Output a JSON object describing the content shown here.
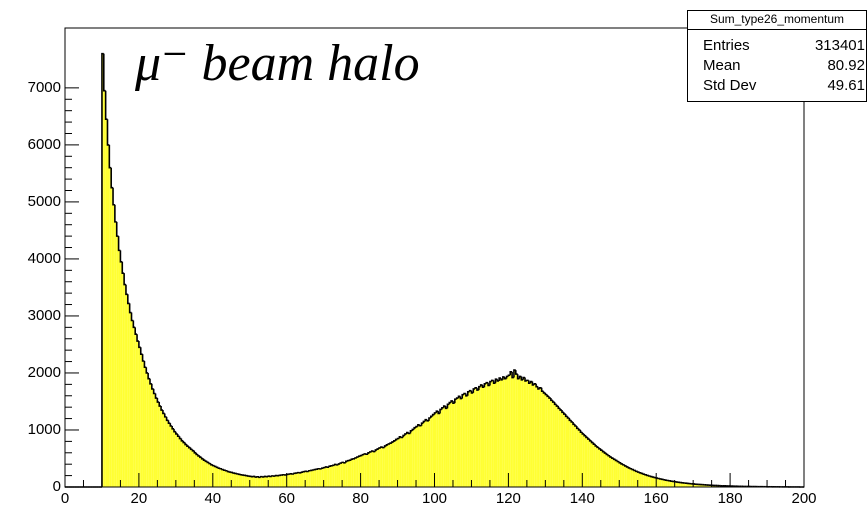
{
  "chart_data": {
    "type": "histogram",
    "title": "Sum_type26_momentum",
    "annotation": "μ⁻ beam halo",
    "stats": {
      "rows": [
        {
          "label": "Entries",
          "value": 313401
        },
        {
          "label": "Mean",
          "value": 80.92
        },
        {
          "label": "Std Dev",
          "value": 49.61
        }
      ]
    },
    "color": "#ffff33",
    "line_color": "#000000",
    "xlim": [
      0,
      200
    ],
    "ylim": [
      0,
      8050
    ],
    "xticks": [
      0,
      20,
      40,
      60,
      80,
      100,
      120,
      140,
      160,
      180,
      200
    ],
    "yticks": [
      0,
      1000,
      2000,
      3000,
      4000,
      5000,
      6000,
      7000
    ],
    "bins": [
      0,
      0.5,
      1,
      1.5,
      2,
      2.5,
      3,
      3.5,
      4,
      4.5,
      5,
      5.5,
      6,
      6.5,
      7,
      7.5,
      8,
      8.5,
      9,
      9.5,
      10,
      10.5,
      11,
      11.5,
      12,
      12.5,
      13,
      13.5,
      14,
      14.5,
      15,
      15.5,
      16,
      16.5,
      17,
      17.5,
      18,
      18.5,
      19,
      19.5,
      20,
      20.5,
      21,
      21.5,
      22,
      22.5,
      23,
      23.5,
      24,
      24.5,
      25,
      25.5,
      26,
      26.5,
      27,
      27.5,
      28,
      28.5,
      29,
      29.5,
      30,
      30.5,
      31,
      31.5,
      32,
      32.5,
      33,
      33.5,
      34,
      34.5,
      35,
      35.5,
      36,
      36.5,
      37,
      37.5,
      38,
      38.5,
      39,
      39.5,
      40,
      40.5,
      41,
      41.5,
      42,
      42.5,
      43,
      43.5,
      44,
      44.5,
      45,
      45.5,
      46,
      46.5,
      47,
      47.5,
      48,
      48.5,
      49,
      49.5,
      50,
      50.5,
      51,
      51.5,
      52,
      52.5,
      53,
      53.5,
      54,
      54.5,
      55,
      55.5,
      56,
      56.5,
      57,
      57.5,
      58,
      58.5,
      59,
      59.5,
      60,
      60.5,
      61,
      61.5,
      62,
      62.5,
      63,
      63.5,
      64,
      64.5,
      65,
      65.5,
      66,
      66.5,
      67,
      67.5,
      68,
      68.5,
      69,
      69.5,
      70,
      70.5,
      71,
      71.5,
      72,
      72.5,
      73,
      73.5,
      74,
      74.5,
      75,
      75.5,
      76,
      76.5,
      77,
      77.5,
      78,
      78.5,
      79,
      79.5,
      80,
      80.5,
      81,
      81.5,
      82,
      82.5,
      83,
      83.5,
      84,
      84.5,
      85,
      85.5,
      86,
      86.5,
      87,
      87.5,
      88,
      88.5,
      89,
      89.5,
      90,
      90.5,
      91,
      91.5,
      92,
      92.5,
      93,
      93.5,
      94,
      94.5,
      95,
      95.5,
      96,
      96.5,
      97,
      97.5,
      98,
      98.5,
      99,
      99.5,
      100,
      100.5,
      101,
      101.5,
      102,
      102.5,
      103,
      103.5,
      104,
      104.5,
      105,
      105.5,
      106,
      106.5,
      107,
      107.5,
      108,
      108.5,
      109,
      109.5,
      110,
      110.5,
      111,
      111.5,
      112,
      112.5,
      113,
      113.5,
      114,
      114.5,
      115,
      115.5,
      116,
      116.5,
      117,
      117.5,
      118,
      118.5,
      119,
      119.5,
      120,
      120.5,
      121,
      121.5,
      122,
      122.5,
      123,
      123.5,
      124,
      124.5,
      125,
      125.5,
      126,
      126.5,
      127,
      127.5,
      128,
      128.5,
      129,
      129.5,
      130,
      130.5,
      131,
      131.5,
      132,
      132.5,
      133,
      133.5,
      134,
      134.5,
      135,
      135.5,
      136,
      136.5,
      137,
      137.5,
      138,
      138.5,
      139,
      139.5,
      140,
      140.5,
      141,
      141.5,
      142,
      142.5,
      143,
      143.5,
      144,
      144.5,
      145,
      145.5,
      146,
      146.5,
      147,
      147.5,
      148,
      148.5,
      149,
      149.5,
      150,
      150.5,
      151,
      151.5,
      152,
      152.5,
      153,
      153.5,
      154,
      154.5,
      155,
      155.5,
      156,
      156.5,
      157,
      157.5,
      158,
      158.5,
      159,
      159.5,
      160,
      160.5,
      161,
      161.5,
      162,
      162.5,
      163,
      163.5,
      164,
      164.5,
      165,
      165.5,
      166,
      166.5,
      167,
      167.5,
      168,
      168.5,
      169,
      169.5,
      170,
      170.5,
      171,
      171.5,
      172,
      172.5,
      173,
      173.5,
      174,
      174.5,
      175,
      175.5,
      176,
      176.5,
      177,
      177.5,
      178,
      178.5,
      179,
      179.5,
      180,
      180.5,
      181,
      181.5,
      182,
      182.5,
      183,
      183.5,
      184,
      184.5,
      185,
      185.5,
      186,
      186.5,
      187,
      187.5,
      188,
      188.5,
      189,
      189.5,
      190,
      190.5,
      191,
      191.5,
      192,
      192.5,
      193,
      193.5,
      194,
      194.5,
      195,
      195.5,
      196,
      196.5,
      197,
      197.5,
      198,
      198.5,
      199,
      199.5,
      200
    ],
    "values": [
      0,
      0,
      0,
      0,
      0,
      0,
      0,
      0,
      0,
      0,
      0,
      0,
      0,
      0,
      0,
      0,
      0,
      0,
      0,
      0,
      7600,
      6950,
      6450,
      6000,
      5600,
      5250,
      4950,
      4650,
      4400,
      4150,
      3950,
      3750,
      3550,
      3380,
      3220,
      3060,
      2920,
      2800,
      2680,
      2560,
      2450,
      2330,
      2210,
      2100,
      2000,
      1900,
      1810,
      1720,
      1640,
      1560,
      1490,
      1420,
      1350,
      1290,
      1230,
      1170,
      1120,
      1070,
      1020,
      970,
      930,
      890,
      850,
      810,
      780,
      745,
      715,
      690,
      660,
      635,
      600,
      570,
      545,
      520,
      495,
      470,
      450,
      430,
      410,
      390,
      375,
      360,
      345,
      330,
      320,
      305,
      295,
      285,
      270,
      262,
      255,
      245,
      238,
      230,
      222,
      215,
      210,
      205,
      198,
      192,
      188,
      180,
      186,
      175,
      178,
      170,
      182,
      176,
      185,
      180,
      190,
      186,
      195,
      192,
      200,
      198,
      205,
      210,
      215,
      212,
      220,
      226,
      232,
      228,
      240,
      245,
      252,
      248,
      260,
      268,
      275,
      272,
      285,
      290,
      298,
      305,
      312,
      320,
      318,
      330,
      340,
      352,
      348,
      365,
      372,
      380,
      395,
      388,
      405,
      420,
      432,
      425,
      450,
      462,
      470,
      488,
      495,
      510,
      525,
      540,
      552,
      568,
      580,
      575,
      600,
      615,
      630,
      622,
      650,
      668,
      685,
      700,
      692,
      720,
      740,
      755,
      770,
      790,
      810,
      835,
      850,
      880,
      870,
      905,
      930,
      955,
      940,
      985,
      1010,
      1040,
      1060,
      1090,
      1075,
      1120,
      1150,
      1180,
      1160,
      1210,
      1240,
      1270,
      1300,
      1330,
      1290,
      1360,
      1390,
      1420,
      1380,
      1450,
      1480,
      1510,
      1470,
      1540,
      1560,
      1590,
      1550,
      1620,
      1640,
      1600,
      1670,
      1690,
      1650,
      1720,
      1740,
      1700,
      1760,
      1790,
      1750,
      1810,
      1830,
      1780,
      1850,
      1870,
      1820,
      1890,
      1860,
      1910,
      1880,
      1930,
      1900,
      1940,
      1960,
      2020,
      1920,
      2050,
      1980,
      1900,
      1940,
      1880,
      1920,
      1860,
      1870,
      1820,
      1850,
      1790,
      1810,
      1760,
      1720,
      1740,
      1680,
      1650,
      1620,
      1590,
      1560,
      1520,
      1490,
      1450,
      1420,
      1380,
      1350,
      1310,
      1280,
      1240,
      1210,
      1170,
      1140,
      1100,
      1070,
      1030,
      1000,
      960,
      930,
      900,
      870,
      840,
      810,
      780,
      750,
      720,
      695,
      670,
      645,
      620,
      595,
      570,
      548,
      525,
      505,
      485,
      465,
      445,
      425,
      405,
      388,
      370,
      352,
      335,
      320,
      305,
      290,
      276,
      262,
      249,
      237,
      225,
      214,
      203,
      193,
      183,
      174,
      165,
      157,
      149,
      141,
      134,
      127,
      120,
      114,
      108,
      102,
      97,
      92,
      87,
      82,
      78,
      74,
      70,
      66,
      63,
      59,
      56,
      53,
      50,
      47,
      45,
      42,
      40,
      38,
      36,
      34,
      32,
      30,
      28,
      27,
      25,
      24,
      22,
      21,
      20,
      19,
      18,
      17,
      16,
      15,
      14,
      13,
      12,
      12,
      11,
      10,
      10,
      9,
      8,
      8,
      7,
      7,
      6,
      6,
      5,
      5,
      5,
      4,
      4,
      4,
      3,
      3,
      3,
      3,
      2,
      2,
      2,
      2,
      2,
      1,
      1,
      1,
      1,
      1,
      1,
      0,
      0
    ]
  }
}
